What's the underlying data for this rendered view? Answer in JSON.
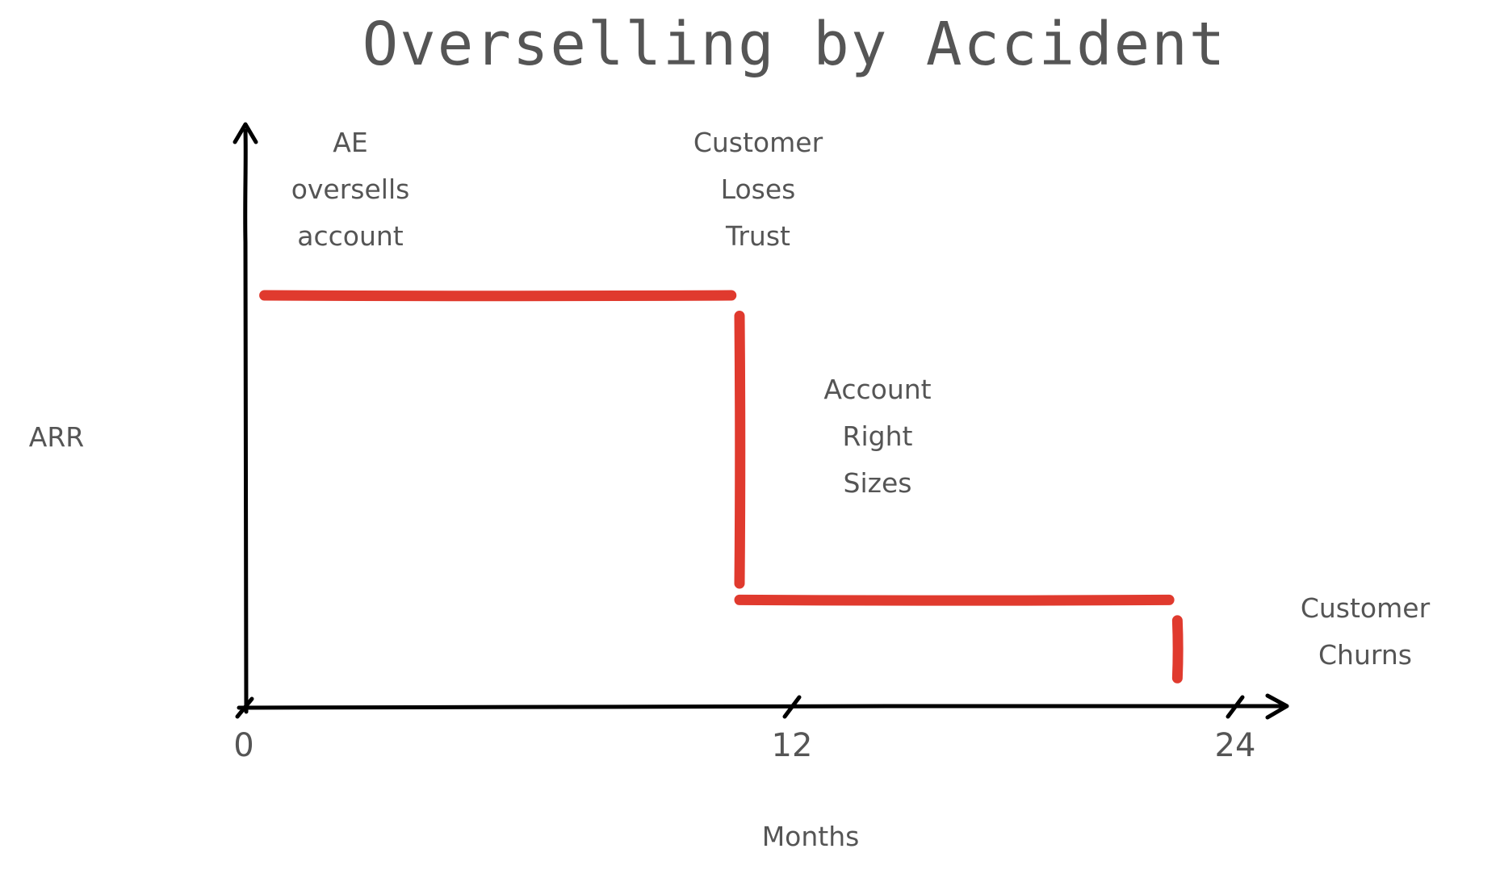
{
  "chart_data": {
    "type": "line",
    "title": "Overselling by Accident",
    "xlabel": "Months",
    "ylabel": "ARR",
    "x_ticks": [
      "0",
      "12",
      "24"
    ],
    "xlim": [
      0,
      24
    ],
    "ylim": [
      0,
      100
    ],
    "grid": false,
    "step_series": {
      "color": "#E03A2E",
      "segments": [
        {
          "x": [
            0.5,
            11.8
          ],
          "y": [
            100,
            100
          ]
        },
        {
          "x": [
            12,
            12
          ],
          "y": [
            95,
            30
          ]
        },
        {
          "x": [
            12,
            22.4
          ],
          "y": [
            26,
            26
          ]
        },
        {
          "x": [
            22.6,
            22.6
          ],
          "y": [
            21,
            7
          ]
        }
      ]
    },
    "annotations": [
      {
        "lines": [
          "AE",
          "oversells",
          "account"
        ]
      },
      {
        "lines": [
          "Customer",
          "Loses",
          "Trust"
        ]
      },
      {
        "lines": [
          "Account",
          "Right",
          "Sizes"
        ]
      },
      {
        "lines": [
          "Customer",
          "Churns"
        ]
      }
    ]
  }
}
